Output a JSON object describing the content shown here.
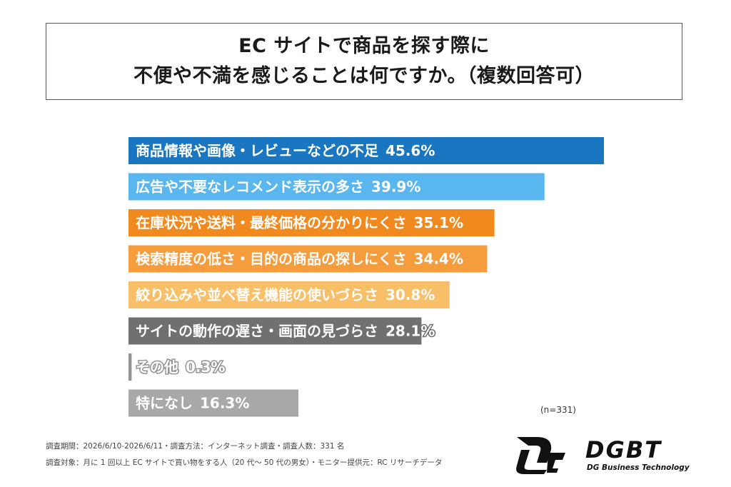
{
  "title": {
    "line1": "EC サイトで商品を探す際に",
    "line2": "不便や不満を感じることは何ですか。（複数回答可）"
  },
  "chart_data": {
    "type": "bar",
    "orientation": "horizontal",
    "categories": [
      "商品情報や画像・レビューなどの不足",
      "広告や不要なレコメンド表示の多さ",
      "在庫状況や送料・最終価格の分かりにくさ",
      "検索精度の低さ・目的の商品の探しにくさ",
      "絞り込みや並べ替え機能の使いづらさ",
      "サイトの動作の遅さ・画面の見づらさ",
      "その他",
      "特になし"
    ],
    "values": [
      45.6,
      39.9,
      35.1,
      34.4,
      30.8,
      28.1,
      0.3,
      16.3
    ],
    "value_labels": [
      "45.6%",
      "39.9%",
      "35.1%",
      "34.4%",
      "30.8%",
      "28.1%",
      "0.3%",
      "16.3%"
    ],
    "colors": [
      "#1a76c0",
      "#59b6ee",
      "#f08a1e",
      "#f59c3c",
      "#f9bf68",
      "#707070",
      "#939393",
      "#a8a8a8"
    ],
    "xlim": [
      0,
      45.6
    ],
    "grid": false,
    "legend": "none",
    "n_label": "(n=331)"
  },
  "footnotes": {
    "line1": "調査期間：2026/6/10-2026/6/11・調査方法：インターネット調査・調査人数：331 名",
    "line2": "調査対象：月に 1 回以上 EC サイトで買い物をする人（20 代〜 50 代の男女）・モニター提供元：RC リサーチデータ"
  },
  "logo": {
    "name": "DGBT",
    "tagline": "DG Business Technology"
  }
}
